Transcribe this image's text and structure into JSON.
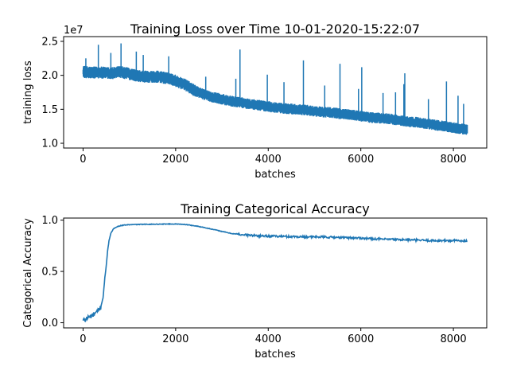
{
  "colors": {
    "series": "#1f77b4"
  },
  "chart_data": [
    {
      "type": "line",
      "title": "Training Loss over Time 10-01-2020-15:22:07",
      "xlabel": "batches",
      "ylabel": "training loss",
      "offset_label": "1e7",
      "xlim": [
        -420,
        8720
      ],
      "ylim": [
        9300000.0,
        25700000.0
      ],
      "xticks": [
        0,
        2000,
        4000,
        6000,
        8000
      ],
      "xtick_labels": [
        "0",
        "2000",
        "4000",
        "6000",
        "8000"
      ],
      "yticks": [
        10000000.0,
        15000000.0,
        20000000.0,
        25000000.0
      ],
      "ytick_labels": [
        "1.0",
        "1.5",
        "2.0",
        "2.5"
      ],
      "grid": false,
      "legend": "none",
      "series": [
        {
          "x": [
            0,
            200,
            400,
            600,
            800,
            1000,
            1200,
            1400,
            1600,
            1800,
            2000,
            2200,
            2400,
            2600,
            2800,
            3000,
            3200,
            3400,
            3600,
            3800,
            4000,
            4200,
            4400,
            4600,
            4800,
            5000,
            5200,
            5400,
            5600,
            5800,
            6000,
            6200,
            6400,
            6600,
            6800,
            7000,
            7200,
            7400,
            7600,
            7800,
            8000,
            8200,
            8300
          ],
          "values": [
            20500000.0,
            20400000.0,
            20400000.0,
            20300000.0,
            20500000.0,
            20200000.0,
            19900000.0,
            19800000.0,
            19800000.0,
            19600000.0,
            19200000.0,
            18600000.0,
            17800000.0,
            17200000.0,
            16800000.0,
            16500000.0,
            16200000.0,
            16000000.0,
            15800000.0,
            15600000.0,
            15400000.0,
            15200000.0,
            15100000.0,
            15000000.0,
            14900000.0,
            14700000.0,
            14600000.0,
            14500000.0,
            14300000.0,
            14200000.0,
            14000000.0,
            13800000.0,
            13700000.0,
            13600000.0,
            13400000.0,
            13200000.0,
            13100000.0,
            12900000.0,
            12700000.0,
            12500000.0,
            12300000.0,
            12100000.0,
            12000000.0
          ],
          "spread": [
            900000.0,
            900000.0,
            900000.0,
            900000.0,
            900000.0,
            900000.0,
            900000.0,
            900000.0,
            900000.0,
            900000.0,
            900000.0,
            900000.0,
            900000.0,
            800000.0,
            800000.0,
            800000.0,
            800000.0,
            800000.0,
            800000.0,
            800000.0,
            800000.0,
            800000.0,
            800000.0,
            800000.0,
            800000.0,
            800000.0,
            800000.0,
            800000.0,
            800000.0,
            800000.0,
            800000.0,
            800000.0,
            800000.0,
            800000.0,
            800000.0,
            800000.0,
            800000.0,
            800000.0,
            800000.0,
            800000.0,
            800000.0,
            800000.0,
            800000.0
          ],
          "spikes": [
            [
              60,
              22500000.0
            ],
            [
              330,
              24500000.0
            ],
            [
              600,
              23300000.0
            ],
            [
              820,
              24700000.0
            ],
            [
              1150,
              23500000.0
            ],
            [
              1300,
              23000000.0
            ],
            [
              1850,
              22800000.0
            ],
            [
              2650,
              19800000.0
            ],
            [
              3300,
              19500000.0
            ],
            [
              3390,
              23800000.0
            ],
            [
              3980,
              20100000.0
            ],
            [
              4340,
              19000000.0
            ],
            [
              4760,
              22200000.0
            ],
            [
              5220,
              18500000.0
            ],
            [
              5550,
              21700000.0
            ],
            [
              5950,
              18000000.0
            ],
            [
              6020,
              21200000.0
            ],
            [
              6480,
              17400000.0
            ],
            [
              6750,
              17500000.0
            ],
            [
              6930,
              18700000.0
            ],
            [
              6950,
              20300000.0
            ],
            [
              7460,
              16500000.0
            ],
            [
              7850,
              19100000.0
            ],
            [
              8100,
              17000000.0
            ],
            [
              8220,
              15800000.0
            ]
          ]
        }
      ]
    },
    {
      "type": "line",
      "title": "Training Categorical Accuracy",
      "xlabel": "batches",
      "ylabel": "Categorical Accuracy",
      "xlim": [
        -420,
        8720
      ],
      "ylim": [
        -0.05,
        1.02
      ],
      "xticks": [
        0,
        2000,
        4000,
        6000,
        8000
      ],
      "xtick_labels": [
        "0",
        "2000",
        "4000",
        "6000",
        "8000"
      ],
      "yticks": [
        0.0,
        0.5,
        1.0
      ],
      "ytick_labels": [
        "0.0",
        "0.5",
        "1.0"
      ],
      "grid": false,
      "legend": "none",
      "series": [
        {
          "x": [
            0,
            100,
            200,
            300,
            380,
            430,
            470,
            500,
            530,
            560,
            600,
            650,
            700,
            800,
            900,
            1000,
            1200,
            1500,
            1800,
            2000,
            2200,
            2400,
            2600,
            2800,
            3000,
            3200,
            3400,
            3600,
            3800,
            4000,
            4400,
            4800,
            5200,
            5600,
            6000,
            6400,
            6800,
            7200,
            7600,
            8000,
            8300
          ],
          "values": [
            0.02,
            0.05,
            0.07,
            0.1,
            0.15,
            0.25,
            0.42,
            0.55,
            0.7,
            0.8,
            0.87,
            0.91,
            0.93,
            0.945,
            0.952,
            0.955,
            0.958,
            0.96,
            0.962,
            0.962,
            0.958,
            0.945,
            0.93,
            0.91,
            0.89,
            0.87,
            0.86,
            0.853,
            0.848,
            0.845,
            0.84,
            0.838,
            0.835,
            0.83,
            0.825,
            0.815,
            0.81,
            0.805,
            0.8,
            0.8,
            0.8
          ]
        }
      ]
    }
  ]
}
